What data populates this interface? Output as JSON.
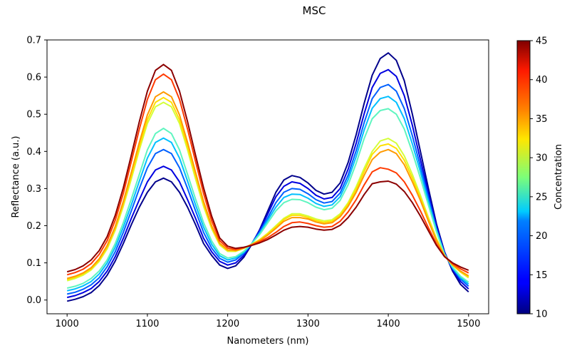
{
  "chart_data": {
    "type": "line",
    "title": "MSC",
    "xlabel": "Nanometers (nm)",
    "ylabel": "Reflectance (a.u.)",
    "xlim": [
      975,
      1525
    ],
    "ylim": [
      -0.037,
      0.7
    ],
    "xticks": [
      1000,
      1100,
      1200,
      1300,
      1400,
      1500
    ],
    "yticks": [
      0.0,
      0.1,
      0.2,
      0.3,
      0.4,
      0.5,
      0.6,
      0.7
    ],
    "grid": false,
    "colorbar": {
      "label": "Concentration",
      "min": 10,
      "max": 45,
      "ticks": [
        10,
        15,
        20,
        25,
        30,
        35,
        40,
        45
      ],
      "colormap": "jet"
    },
    "x": [
      1000,
      1010,
      1020,
      1030,
      1040,
      1050,
      1060,
      1070,
      1080,
      1090,
      1100,
      1110,
      1120,
      1130,
      1140,
      1150,
      1160,
      1170,
      1180,
      1190,
      1200,
      1210,
      1220,
      1230,
      1240,
      1250,
      1260,
      1270,
      1280,
      1290,
      1300,
      1310,
      1320,
      1330,
      1340,
      1350,
      1360,
      1370,
      1380,
      1390,
      1400,
      1410,
      1420,
      1430,
      1440,
      1450,
      1460,
      1470,
      1480,
      1490,
      1500
    ],
    "series": [
      {
        "concentration": 10,
        "color": "#00008b",
        "values": [
          -0.003,
          0.002,
          0.009,
          0.02,
          0.039,
          0.067,
          0.105,
          0.152,
          0.203,
          0.25,
          0.29,
          0.318,
          0.328,
          0.318,
          0.29,
          0.25,
          0.203,
          0.152,
          0.12,
          0.094,
          0.085,
          0.092,
          0.115,
          0.15,
          0.19,
          0.24,
          0.29,
          0.323,
          0.335,
          0.33,
          0.315,
          0.295,
          0.285,
          0.29,
          0.315,
          0.37,
          0.445,
          0.53,
          0.605,
          0.65,
          0.665,
          0.645,
          0.59,
          0.5,
          0.4,
          0.3,
          0.205,
          0.13,
          0.078,
          0.042,
          0.022
        ]
      },
      {
        "concentration": 14,
        "color": "#0000e0",
        "values": [
          0.007,
          0.012,
          0.02,
          0.031,
          0.05,
          0.078,
          0.117,
          0.166,
          0.22,
          0.27,
          0.318,
          0.35,
          0.36,
          0.35,
          0.318,
          0.27,
          0.22,
          0.166,
          0.13,
          0.104,
          0.094,
          0.1,
          0.12,
          0.152,
          0.188,
          0.232,
          0.278,
          0.306,
          0.318,
          0.314,
          0.3,
          0.282,
          0.272,
          0.276,
          0.3,
          0.352,
          0.422,
          0.502,
          0.572,
          0.61,
          0.62,
          0.602,
          0.55,
          0.47,
          0.378,
          0.287,
          0.198,
          0.128,
          0.082,
          0.05,
          0.03
        ]
      },
      {
        "concentration": 18,
        "color": "#0060ff",
        "values": [
          0.016,
          0.021,
          0.029,
          0.041,
          0.06,
          0.09,
          0.13,
          0.182,
          0.24,
          0.3,
          0.356,
          0.394,
          0.405,
          0.394,
          0.356,
          0.3,
          0.24,
          0.182,
          0.14,
          0.112,
          0.102,
          0.108,
          0.125,
          0.152,
          0.184,
          0.222,
          0.262,
          0.29,
          0.3,
          0.298,
          0.286,
          0.27,
          0.261,
          0.265,
          0.288,
          0.336,
          0.402,
          0.478,
          0.542,
          0.572,
          0.58,
          0.562,
          0.515,
          0.442,
          0.36,
          0.275,
          0.192,
          0.125,
          0.085,
          0.056,
          0.037
        ]
      },
      {
        "concentration": 21,
        "color": "#00bfff",
        "values": [
          0.025,
          0.03,
          0.038,
          0.05,
          0.07,
          0.1,
          0.142,
          0.196,
          0.256,
          0.32,
          0.382,
          0.424,
          0.436,
          0.424,
          0.382,
          0.32,
          0.256,
          0.196,
          0.15,
          0.119,
          0.108,
          0.113,
          0.128,
          0.152,
          0.18,
          0.215,
          0.25,
          0.276,
          0.285,
          0.284,
          0.274,
          0.26,
          0.252,
          0.256,
          0.278,
          0.324,
          0.386,
          0.458,
          0.516,
          0.542,
          0.548,
          0.532,
          0.488,
          0.42,
          0.345,
          0.265,
          0.188,
          0.124,
          0.087,
          0.06,
          0.043
        ]
      },
      {
        "concentration": 24,
        "color": "#5ff5c0",
        "values": [
          0.032,
          0.037,
          0.045,
          0.058,
          0.078,
          0.108,
          0.152,
          0.208,
          0.272,
          0.338,
          0.404,
          0.448,
          0.462,
          0.448,
          0.404,
          0.338,
          0.272,
          0.208,
          0.159,
          0.125,
          0.113,
          0.117,
          0.131,
          0.152,
          0.177,
          0.208,
          0.24,
          0.262,
          0.271,
          0.27,
          0.262,
          0.25,
          0.243,
          0.247,
          0.268,
          0.31,
          0.368,
          0.435,
          0.488,
          0.51,
          0.515,
          0.5,
          0.46,
          0.398,
          0.328,
          0.255,
          0.184,
          0.123,
          0.089,
          0.064,
          0.048
        ]
      },
      {
        "concentration": 32,
        "color": "#d4ff3a",
        "values": [
          0.052,
          0.058,
          0.067,
          0.081,
          0.104,
          0.138,
          0.188,
          0.252,
          0.326,
          0.404,
          0.475,
          0.52,
          0.532,
          0.52,
          0.475,
          0.404,
          0.326,
          0.252,
          0.192,
          0.148,
          0.131,
          0.131,
          0.139,
          0.15,
          0.163,
          0.18,
          0.2,
          0.22,
          0.232,
          0.232,
          0.226,
          0.218,
          0.213,
          0.216,
          0.232,
          0.262,
          0.305,
          0.355,
          0.4,
          0.428,
          0.435,
          0.422,
          0.388,
          0.338,
          0.282,
          0.222,
          0.166,
          0.12,
          0.094,
          0.075,
          0.06
        ]
      },
      {
        "concentration": 34,
        "color": "#ffe000",
        "values": [
          0.055,
          0.061,
          0.07,
          0.084,
          0.107,
          0.142,
          0.193,
          0.258,
          0.334,
          0.412,
          0.485,
          0.532,
          0.545,
          0.532,
          0.485,
          0.412,
          0.334,
          0.258,
          0.196,
          0.151,
          0.133,
          0.132,
          0.14,
          0.15,
          0.162,
          0.178,
          0.197,
          0.217,
          0.228,
          0.228,
          0.222,
          0.214,
          0.209,
          0.212,
          0.228,
          0.258,
          0.298,
          0.346,
          0.392,
          0.415,
          0.42,
          0.408,
          0.376,
          0.328,
          0.275,
          0.217,
          0.163,
          0.119,
          0.094,
          0.076,
          0.062
        ]
      },
      {
        "concentration": 36,
        "color": "#ff9a00",
        "values": [
          0.058,
          0.064,
          0.073,
          0.087,
          0.111,
          0.147,
          0.198,
          0.265,
          0.344,
          0.424,
          0.498,
          0.547,
          0.56,
          0.547,
          0.498,
          0.424,
          0.344,
          0.265,
          0.2,
          0.153,
          0.135,
          0.133,
          0.14,
          0.15,
          0.16,
          0.175,
          0.193,
          0.212,
          0.222,
          0.222,
          0.218,
          0.21,
          0.205,
          0.208,
          0.224,
          0.252,
          0.29,
          0.336,
          0.378,
          0.398,
          0.405,
          0.394,
          0.364,
          0.318,
          0.268,
          0.212,
          0.16,
          0.119,
          0.095,
          0.078,
          0.065
        ]
      },
      {
        "concentration": 40,
        "color": "#ff3a00",
        "values": [
          0.068,
          0.074,
          0.083,
          0.098,
          0.123,
          0.16,
          0.215,
          0.287,
          0.373,
          0.46,
          0.54,
          0.593,
          0.608,
          0.593,
          0.54,
          0.46,
          0.373,
          0.287,
          0.214,
          0.16,
          0.14,
          0.136,
          0.141,
          0.148,
          0.157,
          0.168,
          0.182,
          0.198,
          0.208,
          0.21,
          0.206,
          0.2,
          0.196,
          0.198,
          0.212,
          0.237,
          0.27,
          0.31,
          0.345,
          0.356,
          0.352,
          0.342,
          0.318,
          0.282,
          0.24,
          0.194,
          0.151,
          0.117,
          0.098,
          0.084,
          0.073
        ]
      },
      {
        "concentration": 45,
        "color": "#8b0000",
        "values": [
          0.076,
          0.082,
          0.092,
          0.108,
          0.133,
          0.171,
          0.228,
          0.302,
          0.39,
          0.48,
          0.562,
          0.618,
          0.634,
          0.618,
          0.562,
          0.48,
          0.39,
          0.302,
          0.226,
          0.167,
          0.145,
          0.139,
          0.142,
          0.147,
          0.154,
          0.163,
          0.175,
          0.188,
          0.196,
          0.198,
          0.196,
          0.191,
          0.188,
          0.19,
          0.201,
          0.222,
          0.25,
          0.284,
          0.313,
          0.318,
          0.32,
          0.312,
          0.292,
          0.262,
          0.226,
          0.186,
          0.147,
          0.117,
          0.1,
          0.089,
          0.08
        ]
      }
    ]
  }
}
